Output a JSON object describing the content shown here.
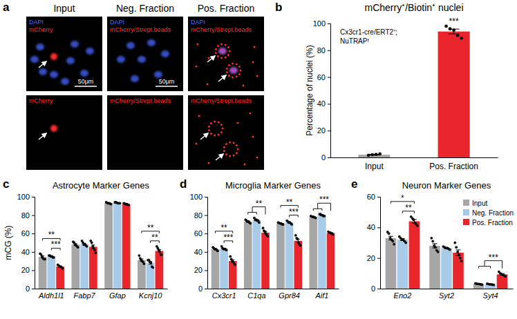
{
  "images": {
    "panel_label": "a",
    "columns": [
      "Input",
      "Neg. Fraction",
      "Pos. Fraction"
    ],
    "rows": [
      [
        {
          "labels": [
            {
              "text": "DAPI",
              "color": "#4a6cff"
            },
            {
              "text": "mCherry",
              "color": "#ff2a2a"
            }
          ],
          "scale_bar": "50μm"
        },
        {
          "labels": [
            {
              "text": "DAPI",
              "color": "#4a6cff"
            },
            {
              "text": "mCherry/Strept.beads",
              "color": "#ff2a2a"
            }
          ],
          "scale_bar": "50μm"
        },
        {
          "labels": [
            {
              "text": "DAPI",
              "color": "#4a6cff"
            },
            {
              "text": "mCherry/Strept.beads",
              "color": "#ff2a2a"
            }
          ]
        }
      ],
      [
        {
          "labels": [
            {
              "text": "mCherry",
              "color": "#ff2a2a"
            }
          ]
        },
        {
          "labels": [
            {
              "text": "mCherry/Strept.beads",
              "color": "#ff2a2a"
            }
          ]
        },
        {
          "labels": [
            {
              "text": "mCherry/Strept.beads",
              "color": "#ff2a2a"
            }
          ]
        }
      ]
    ]
  },
  "chart_data": [
    {
      "type": "bar",
      "panel_label": "b",
      "title": "mCherry⁺/Biotin⁺ nuclei",
      "y_label": "Percentage of nuclei (%)",
      "categories": [
        "Input",
        "Pos. Fraction"
      ],
      "values": [
        2,
        94
      ],
      "errors": [
        0.3,
        1.8
      ],
      "points": [
        [
          1.6,
          2.0,
          2.3,
          2.6
        ],
        [
          98,
          96,
          95,
          91,
          89
        ]
      ],
      "colors": [
        "#a6a6a6",
        "#e8262b"
      ],
      "ylim": [
        0,
        100
      ],
      "yticks": [
        0,
        20,
        40,
        60,
        80,
        100
      ],
      "annotations": [
        {
          "category": 1,
          "label": "***"
        }
      ],
      "note": [
        "Cx3cr1-cre/ERT2⁺;",
        "NuTRAPᶠ"
      ]
    },
    {
      "type": "bar",
      "panel_label": "c",
      "title": "Astrocyte Marker Genes",
      "y_label": "mCG (%)",
      "categories": [
        "Aldh1l1",
        "Fabp7",
        "Gfap",
        "Kcnj10"
      ],
      "ylim": [
        0,
        100
      ],
      "yticks": [
        0,
        20,
        40,
        60,
        80,
        100
      ],
      "series": [
        {
          "color": "#a6a6a6",
          "values": [
            34.5,
            48,
            93,
            31
          ],
          "errors": [
            1.1,
            1,
            0.3,
            1.3
          ],
          "points": [
            [
              38,
              37,
              35,
              33,
              32,
              32
            ],
            [
              51,
              50,
              48,
              47,
              46,
              45
            ],
            [
              94,
              93.5,
              93,
              93,
              92.5,
              92
            ],
            [
              36,
              33,
              31,
              30,
              29,
              27
            ]
          ]
        },
        {
          "color": "#a9cbea",
          "values": [
            35,
            48.5,
            93.5,
            28
          ],
          "errors": [
            0.4,
            0.9,
            0.2,
            1.4
          ],
          "points": [
            [
              36,
              36,
              35,
              35,
              34,
              34
            ],
            [
              52,
              50,
              48,
              48,
              47,
              46
            ],
            [
              94,
              94,
              93.5,
              93,
              93,
              93
            ],
            [
              31,
              31,
              29,
              28,
              24,
              23
            ]
          ]
        },
        {
          "color": "#e8262b",
          "values": [
            24,
            45.5,
            92,
            41
          ],
          "errors": [
            0.6,
            2,
            0.3,
            1.5
          ],
          "points": [
            [
              26,
              25,
              24,
              24,
              23,
              22
            ],
            [
              52,
              50,
              46,
              44,
              42,
              39
            ],
            [
              93,
              92.5,
              92,
              92,
              91.5,
              91
            ],
            [
              46,
              44,
              42,
              40,
              37,
              37
            ]
          ]
        }
      ],
      "annotations": [
        {
          "category": 0,
          "from": 1,
          "to": 2,
          "label": "***"
        },
        {
          "category": 0,
          "from": 0,
          "to": 2,
          "label": "**"
        },
        {
          "category": 3,
          "from": 1,
          "to": 2,
          "label": "**"
        },
        {
          "category": 3,
          "from": 0,
          "to": 2,
          "label": "**"
        }
      ]
    },
    {
      "type": "bar",
      "panel_label": "d",
      "title": "Microglia Marker Genes",
      "categories": [
        "Cx3cr1",
        "C1qa",
        "Gpr84",
        "Aif1"
      ],
      "ylim": [
        0,
        100
      ],
      "yticks": [
        0,
        20,
        40,
        60,
        80,
        100
      ],
      "series": [
        {
          "color": "#a6a6a6",
          "values": [
            43,
            73,
            71,
            78
          ],
          "errors": [
            0.6,
            0.6,
            0.3,
            0.3
          ],
          "points": [
            [
              45,
              44,
              43,
              43,
              42,
              41
            ],
            [
              75,
              74,
              73,
              73,
              72,
              71
            ],
            [
              72,
              71.5,
              71,
              71,
              70,
              70
            ],
            [
              79,
              78.5,
              78,
              78,
              77.5,
              77
            ]
          ]
        },
        {
          "color": "#a9cbea",
          "values": [
            43.5,
            74.5,
            72,
            80
          ],
          "errors": [
            0.6,
            0.7,
            0.6,
            0.4
          ],
          "points": [
            [
              46,
              44,
              43,
              43,
              43,
              42
            ],
            [
              77,
              75,
              75,
              74,
              74,
              72
            ],
            [
              74,
              73,
              72,
              72,
              71,
              70
            ],
            [
              81,
              81,
              80,
              80,
              79,
              79
            ]
          ]
        },
        {
          "color": "#e8262b",
          "values": [
            30,
            61,
            52,
            60.5
          ],
          "errors": [
            1.4,
            1.4,
            1.8,
            0.4
          ],
          "points": [
            [
              35,
              32,
              30,
              29,
              27,
              26
            ],
            [
              66,
              63,
              62,
              60,
              58,
              57
            ],
            [
              58,
              55,
              54,
              50,
              48,
              47
            ],
            [
              62,
              61,
              61,
              60,
              60,
              59
            ]
          ]
        }
      ],
      "annotations": [
        {
          "category": 0,
          "from": 1,
          "to": 2,
          "label": "***"
        },
        {
          "category": 0,
          "from": 0,
          "to": 2,
          "label": "**"
        },
        {
          "category": 1,
          "from": [
            0,
            1
          ],
          "to": 2,
          "label": "**"
        },
        {
          "category": 2,
          "from": 1,
          "to": 2,
          "label": "***"
        },
        {
          "category": 2,
          "from": 0,
          "to": 2,
          "label": "**"
        },
        {
          "category": 3,
          "from": [
            0,
            1
          ],
          "to": 2,
          "label": "***"
        }
      ]
    },
    {
      "type": "bar",
      "panel_label": "e",
      "title": "Neuron Marker Genes",
      "legend": "top-right",
      "categories": [
        "Eno2",
        "Syt2",
        "Syt4"
      ],
      "ylim": [
        0,
        60
      ],
      "yticks": [
        0,
        20,
        40,
        60
      ],
      "series": [
        {
          "name": "Input",
          "color": "#a6a6a6",
          "values": [
            33,
            28,
            3
          ],
          "errors": [
            1.2,
            1.4,
            0.1
          ],
          "points": [
            [
              37,
              36,
              33,
              32,
              31,
              29
            ],
            [
              33,
              31,
              28,
              27,
              25,
              24
            ],
            [
              3.4,
              3.2,
              3,
              3,
              2.8,
              2.6
            ]
          ]
        },
        {
          "name": "Neg. Fraction",
          "color": "#a9cbea",
          "values": [
            32,
            26.5,
            2.8
          ],
          "errors": [
            0.6,
            0.3,
            0.1
          ],
          "points": [
            [
              34,
              33,
              32,
              32,
              31,
              30
            ],
            [
              27.5,
              27,
              26.5,
              26.5,
              26,
              25.5
            ],
            [
              3.2,
              3,
              2.8,
              2.8,
              2.6,
              2.4
            ]
          ]
        },
        {
          "name": "Pos. Fraction",
          "color": "#e8262b",
          "values": [
            44,
            23.5,
            9.3
          ],
          "errors": [
            1.1,
            1.8,
            0.5
          ],
          "points": [
            [
              47,
              46,
              45,
              43,
              42,
              41
            ],
            [
              30,
              27,
              24,
              22,
              20,
              18
            ],
            [
              11,
              10,
              9.5,
              9,
              8.5,
              8
            ]
          ]
        }
      ],
      "annotations": [
        {
          "category": 0,
          "from": 1,
          "to": 2,
          "label": "**"
        },
        {
          "category": 0,
          "from": 0,
          "to": 2,
          "label": "*"
        },
        {
          "category": 2,
          "from": [
            0,
            1
          ],
          "to": 2,
          "label": "***"
        }
      ]
    }
  ]
}
